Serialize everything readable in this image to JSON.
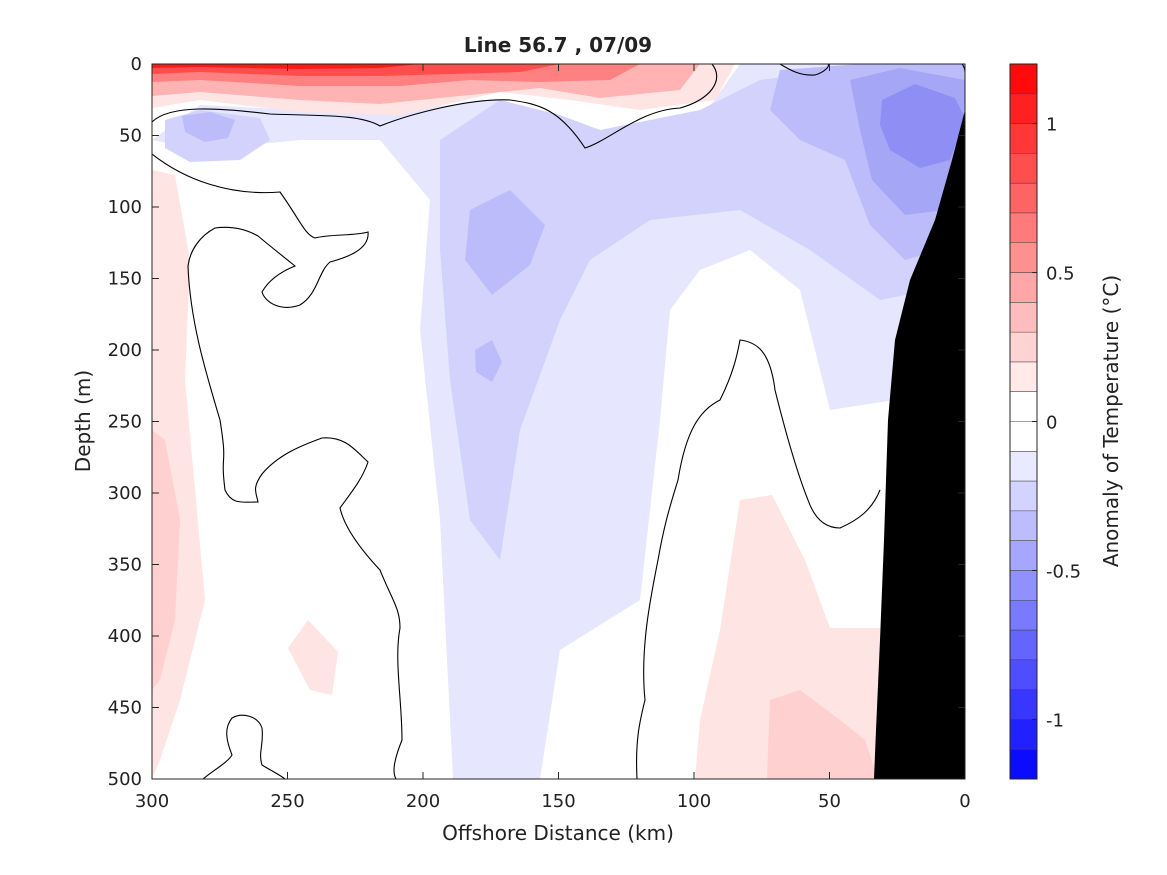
{
  "chart_data": {
    "type": "contour",
    "title": "Line 56.7 , 07/09",
    "xlabel": "Offshore Distance (km)",
    "ylabel": "Depth (m)",
    "xlim": [
      300,
      0
    ],
    "ylim": [
      0,
      500
    ],
    "x_reversed": true,
    "y_reversed": true,
    "x_ticks": [
      300,
      250,
      200,
      150,
      100,
      50,
      0
    ],
    "y_ticks": [
      0,
      50,
      100,
      150,
      200,
      250,
      300,
      350,
      400,
      450,
      500
    ],
    "colorbar": {
      "label": "Anomaly of Temperature (°C)",
      "range": [
        -1.2,
        1.2
      ],
      "step": 0.1,
      "ticks": [
        1,
        0.5,
        0,
        -0.5,
        -1
      ],
      "tick_labels": [
        "1",
        "0.5",
        "0",
        "-0.5",
        "-1"
      ],
      "positive_color": "#ff0000",
      "negative_color": "#0000ff"
    },
    "fields": [
      {
        "name": "surface-warm-core",
        "anomaly": 1.0,
        "x_range": [
          300,
          210
        ],
        "depth_range": [
          0,
          10
        ]
      },
      {
        "name": "surface-warm-layer",
        "anomaly": 0.6,
        "x_range": [
          300,
          100
        ],
        "depth_range": [
          0,
          30
        ]
      },
      {
        "name": "nearshore-cold-core",
        "anomaly": -0.55,
        "x_range": [
          35,
          3
        ],
        "depth_range": [
          25,
          110
        ]
      },
      {
        "name": "midline-cool-lens",
        "anomaly": -0.3,
        "x_range": [
          190,
          160
        ],
        "depth_range": [
          100,
          160
        ]
      },
      {
        "name": "deep-nearshore-warm",
        "anomaly": 0.15,
        "x_range": [
          90,
          35
        ],
        "depth_range": [
          300,
          500
        ]
      },
      {
        "name": "western-edge-warm",
        "anomaly": 0.15,
        "x_range": [
          300,
          285
        ],
        "depth_range": [
          80,
          470
        ]
      }
    ],
    "bathymetry_color": "#000000"
  },
  "colors": {
    "plot_background": "#ffffff",
    "bathymetry": "#000000",
    "axis": "#262626"
  }
}
